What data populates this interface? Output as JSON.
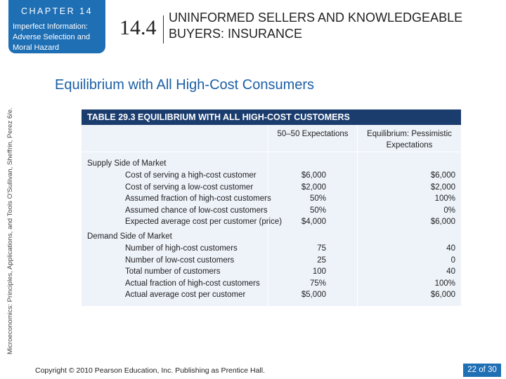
{
  "header": {
    "chapter_label": "CHAPTER 14",
    "chapter_subtitle": "Imperfect Information: Adverse Selection and Moral Hazard",
    "section_number": "14.4",
    "section_title": "UNINFORMED SELLERS AND KNOWLEDGEABLE BUYERS: INSURANCE"
  },
  "side_credit": "Microeconomics: Principles, Applications, and Tools    O'Sullivan, Sheffrin, Perez    6/e.",
  "slide_heading": "Equilibrium with All High-Cost Consumers",
  "table": {
    "caption": "TABLE 29.3  EQUILIBRIUM WITH ALL HIGH-COST CUSTOMERS",
    "columns": [
      "50–50 Expectations",
      "Equilibrium: Pessimistic Expectations"
    ],
    "supply_section": "Supply Side of Market",
    "supply_rows": [
      {
        "label": "Cost of serving a high-cost customer",
        "v1": "$6,000",
        "v2": "$6,000"
      },
      {
        "label": "Cost of serving a low-cost customer",
        "v1": "$2,000",
        "v2": "$2,000"
      },
      {
        "label": "Assumed fraction of high-cost customers",
        "v1": "50%",
        "v2": "100%"
      },
      {
        "label": "Assumed chance of low-cost customers",
        "v1": "50%",
        "v2": "0%"
      },
      {
        "label": "Expected average cost per customer (price)",
        "v1": "$4,000",
        "v2": "$6,000"
      }
    ],
    "demand_section": "Demand Side of Market",
    "demand_rows": [
      {
        "label": "Number of high-cost customers",
        "v1": "75",
        "v2": "40"
      },
      {
        "label": "Number of low-cost customers",
        "v1": "25",
        "v2": "0"
      },
      {
        "label": "Total number of customers",
        "v1": "100",
        "v2": "40"
      },
      {
        "label": "Actual fraction of high-cost customers",
        "v1": "75%",
        "v2": "100%"
      },
      {
        "label": "Actual average cost per customer",
        "v1": "$5,000",
        "v2": "$6,000"
      }
    ]
  },
  "footer": {
    "copyright": "Copyright © 2010  Pearson Education, Inc. Publishing as Prentice Hall.",
    "page_current": "22",
    "page_of": "of",
    "page_total": "30"
  },
  "colors": {
    "accent": "#1f6fb5",
    "table_header": "#1b3d6e",
    "table_fill": "#eef3fa",
    "heading": "#1b5fa6"
  }
}
